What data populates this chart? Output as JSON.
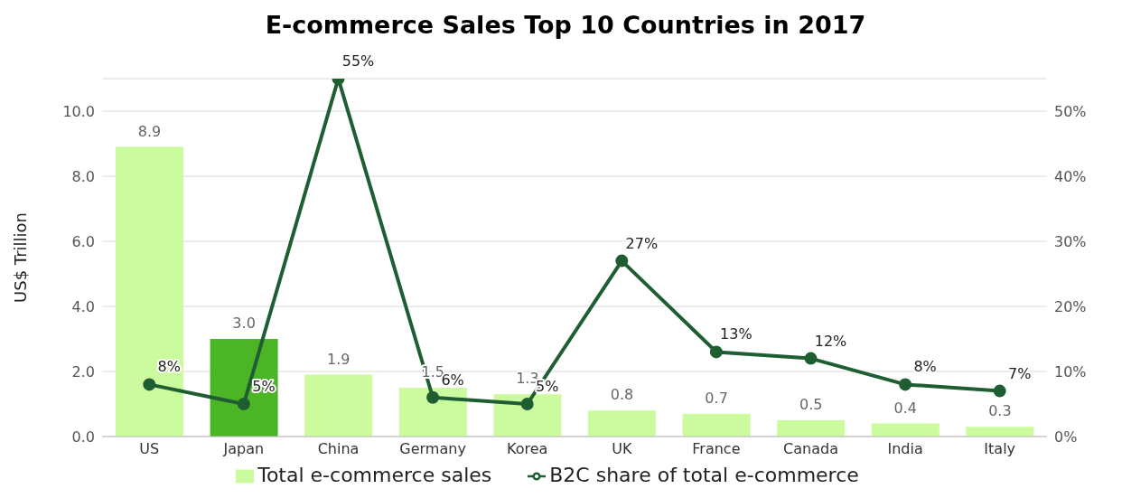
{
  "chart_data": {
    "type": "bar",
    "title": "E-commerce Sales Top 10 Countries in 2017",
    "ylabel": "US$ Trillion",
    "categories": [
      "US",
      "Japan",
      "China",
      "Germany",
      "Korea",
      "UK",
      "France",
      "Canada",
      "India",
      "Italy"
    ],
    "series": [
      {
        "name": "Total e-commerce sales",
        "color": "#ccfa9e",
        "colors": [
          "#ccfa9e",
          "#4cb526",
          "#ccfa9e",
          "#ccfa9e",
          "#ccfa9e",
          "#ccfa9e",
          "#ccfa9e",
          "#ccfa9e",
          "#ccfa9e",
          "#ccfa9e"
        ],
        "values": [
          8.9,
          3.0,
          1.9,
          1.5,
          1.3,
          0.8,
          0.7,
          0.5,
          0.4,
          0.3
        ],
        "value_labels": [
          "8.9",
          "3.0",
          "1.9",
          "1.5",
          "1.3",
          "0.8",
          "0.7",
          "0.5",
          "0.4",
          "0.3"
        ]
      },
      {
        "name": "B2C share of total e-commerce",
        "type": "line",
        "axis": "y2",
        "color": "#1e5e32",
        "values": [
          8,
          5,
          55,
          6,
          5,
          27,
          13,
          12,
          8,
          7
        ],
        "value_labels": [
          "8%",
          "5%",
          "55%",
          "6%",
          "5%",
          "27%",
          "13%",
          "12%",
          "8%",
          "7%"
        ]
      }
    ],
    "ylim": [
      0,
      11
    ],
    "yticks": [
      {
        "value": 0,
        "label": "0.0"
      },
      {
        "value": 2,
        "label": "2.0"
      },
      {
        "value": 4,
        "label": "4.0"
      },
      {
        "value": 6,
        "label": "6.0"
      },
      {
        "value": 8,
        "label": "8.0"
      },
      {
        "value": 10,
        "label": "10.0"
      }
    ],
    "y2lim": [
      0,
      55
    ],
    "y2ticks": [
      {
        "value": 0,
        "label": "0%"
      },
      {
        "value": 10,
        "label": "10%"
      },
      {
        "value": 20,
        "label": "20%"
      },
      {
        "value": 30,
        "label": "30%"
      },
      {
        "value": 40,
        "label": "40%"
      },
      {
        "value": 50,
        "label": "50%"
      }
    ],
    "grid": "y",
    "legend": "bottom",
    "marker": "circle"
  }
}
